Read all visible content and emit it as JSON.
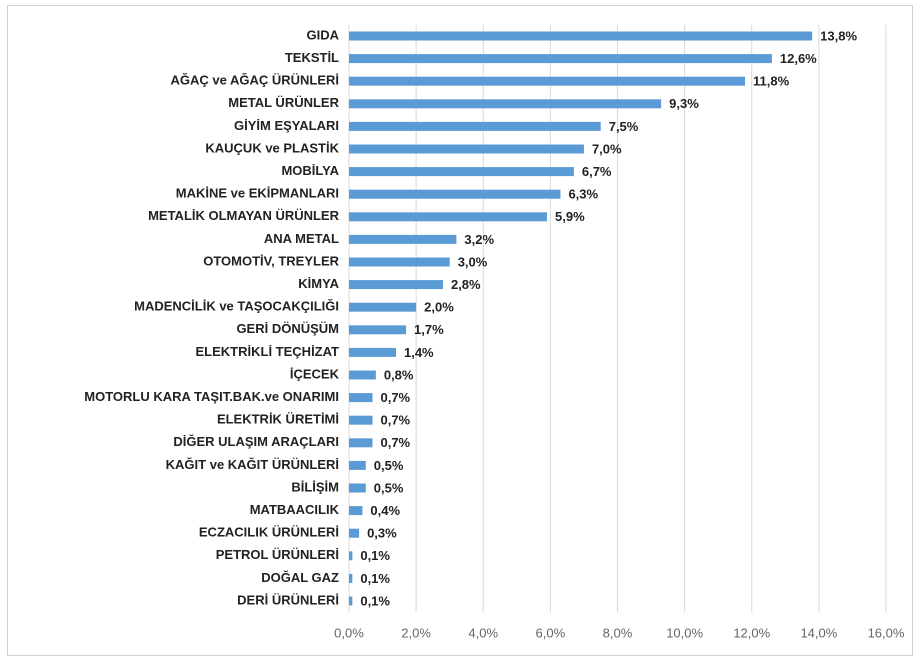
{
  "chart_data": {
    "type": "bar",
    "orientation": "horizontal",
    "color": "#5b9bd5",
    "grid": true,
    "categories": [
      "GIDA",
      "TEKSTİL",
      "AĞAÇ ve AĞAÇ ÜRÜNLERİ",
      "METAL ÜRÜNLER",
      "GİYİM EŞYALARI",
      "KAUÇUK ve PLASTİK",
      "MOBİLYA",
      "MAKİNE ve EKİPMANLARI",
      "METALİK OLMAYAN ÜRÜNLER",
      "ANA METAL",
      "OTOMOTİV, TREYLER",
      "KİMYA",
      "MADENCİLİK ve TAŞOCAKÇILIĞI",
      "GERİ DÖNÜŞÜM",
      "ELEKTRİKLİ TEÇHİZAT",
      "İÇECEK",
      "MOTORLU KARA TAŞIT.BAK.ve ONARIMI",
      "ELEKTRİK ÜRETİMİ",
      "DİĞER ULAŞIM ARAÇLARI",
      "KAĞIT ve KAĞIT ÜRÜNLERİ",
      "BİLİŞİM",
      "MATBAACILIK",
      "ECZACILIK ÜRÜNLERİ",
      "PETROL ÜRÜNLERİ",
      "DOĞAL GAZ",
      "DERİ ÜRÜNLERİ"
    ],
    "values": [
      13.8,
      12.6,
      11.8,
      9.3,
      7.5,
      7.0,
      6.7,
      6.3,
      5.9,
      3.2,
      3.0,
      2.8,
      2.0,
      1.7,
      1.4,
      0.8,
      0.7,
      0.7,
      0.7,
      0.5,
      0.5,
      0.4,
      0.3,
      0.1,
      0.1,
      0.1
    ],
    "value_labels": [
      "13,8%",
      "12,6%",
      "11,8%",
      "9,3%",
      "7,5%",
      "7,0%",
      "6,7%",
      "6,3%",
      "5,9%",
      "3,2%",
      "3,0%",
      "2,8%",
      "2,0%",
      "1,7%",
      "1,4%",
      "0,8%",
      "0,7%",
      "0,7%",
      "0,7%",
      "0,5%",
      "0,5%",
      "0,4%",
      "0,3%",
      "0,1%",
      "0,1%",
      "0,1%"
    ],
    "xlim": [
      0,
      16
    ],
    "xticks": [
      {
        "value": 0,
        "label": "0,0%"
      },
      {
        "value": 2,
        "label": "2,0%"
      },
      {
        "value": 4,
        "label": "4,0%"
      },
      {
        "value": 6,
        "label": "6,0%"
      },
      {
        "value": 8,
        "label": "8,0%"
      },
      {
        "value": 10,
        "label": "10,0%"
      },
      {
        "value": 12,
        "label": "12,0%"
      },
      {
        "value": 14,
        "label": "14,0%"
      },
      {
        "value": 16,
        "label": "16,0%"
      }
    ]
  }
}
